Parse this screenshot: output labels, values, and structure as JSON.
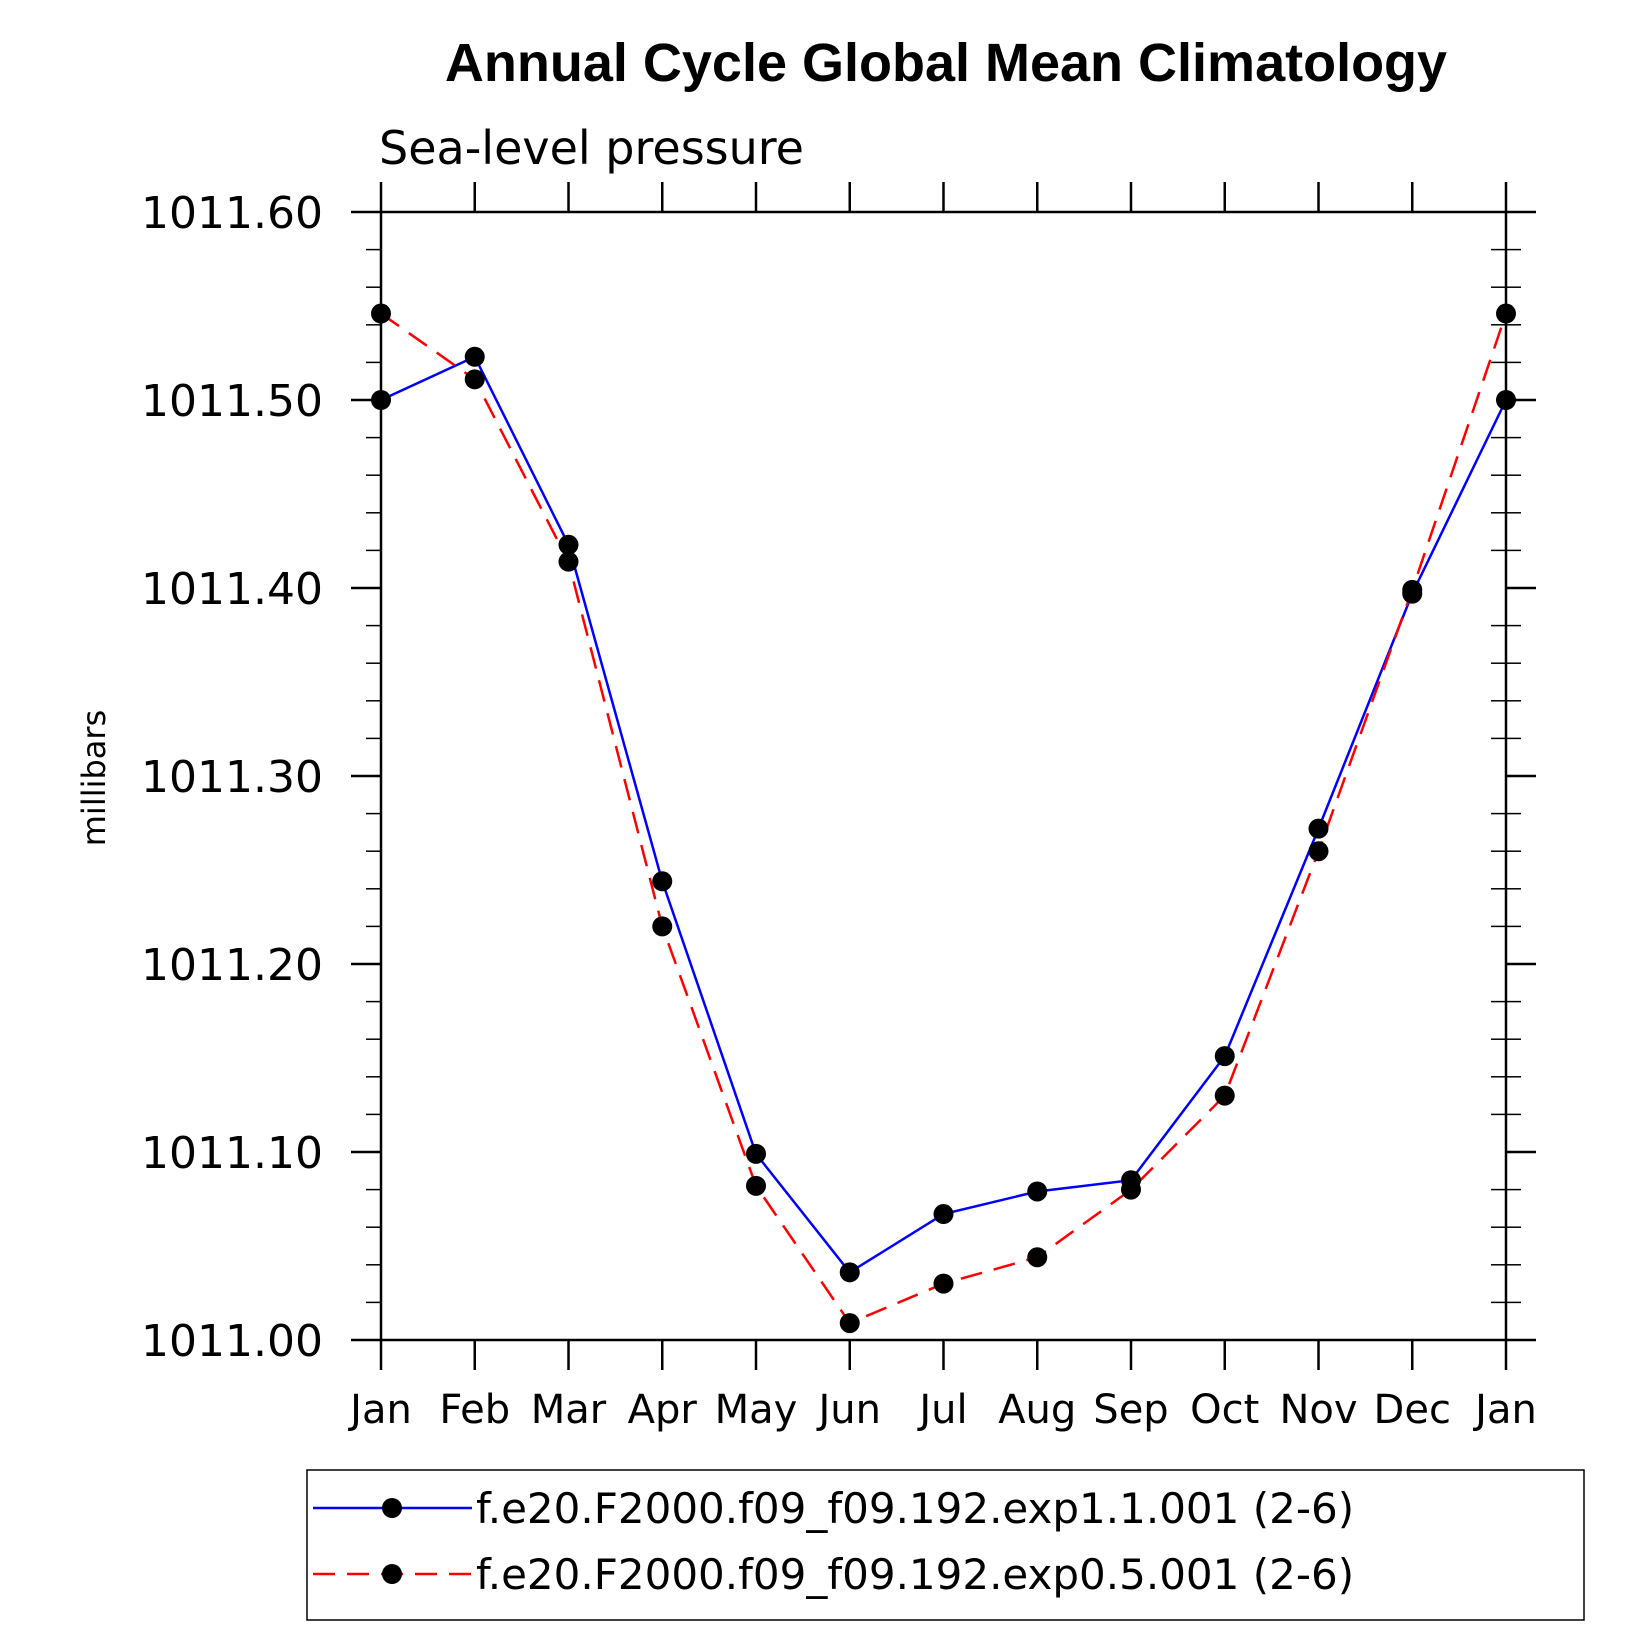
{
  "chart_data": {
    "type": "line",
    "title": "Annual Cycle Global Mean Climatology",
    "subtitle": "Sea-level pressure",
    "ylabel": "millibars",
    "xlabel": "",
    "categories": [
      "Jan",
      "Feb",
      "Mar",
      "Apr",
      "May",
      "Jun",
      "Jul",
      "Aug",
      "Sep",
      "Oct",
      "Nov",
      "Dec",
      "Jan"
    ],
    "ylim": [
      1011.0,
      1011.6
    ],
    "yticks": [
      "1011.00",
      "1011.10",
      "1011.20",
      "1011.30",
      "1011.40",
      "1011.50",
      "1011.60"
    ],
    "ytick_values": [
      1011.0,
      1011.1,
      1011.2,
      1011.3,
      1011.4,
      1011.5,
      1011.6
    ],
    "grid": false,
    "legend_position": "bottom",
    "series": [
      {
        "name": "f.e20.F2000.f09_f09.192.exp1.1.001 (2-6)",
        "color": "#0000ff",
        "line_style": "solid",
        "marker": "filled-circle",
        "values": [
          1011.5,
          1011.523,
          1011.423,
          1011.244,
          1011.099,
          1011.036,
          1011.067,
          1011.079,
          1011.085,
          1011.151,
          1011.272,
          1011.397,
          1011.5
        ]
      },
      {
        "name": "f.e20.F2000.f09_f09.192.exp0.5.001 (2-6)",
        "color": "#ff0000",
        "line_style": "dashed",
        "marker": "filled-circle",
        "values": [
          1011.546,
          1011.511,
          1011.414,
          1011.22,
          1011.082,
          1011.009,
          1011.03,
          1011.044,
          1011.08,
          1011.13,
          1011.26,
          1011.399,
          1011.546
        ]
      }
    ]
  }
}
